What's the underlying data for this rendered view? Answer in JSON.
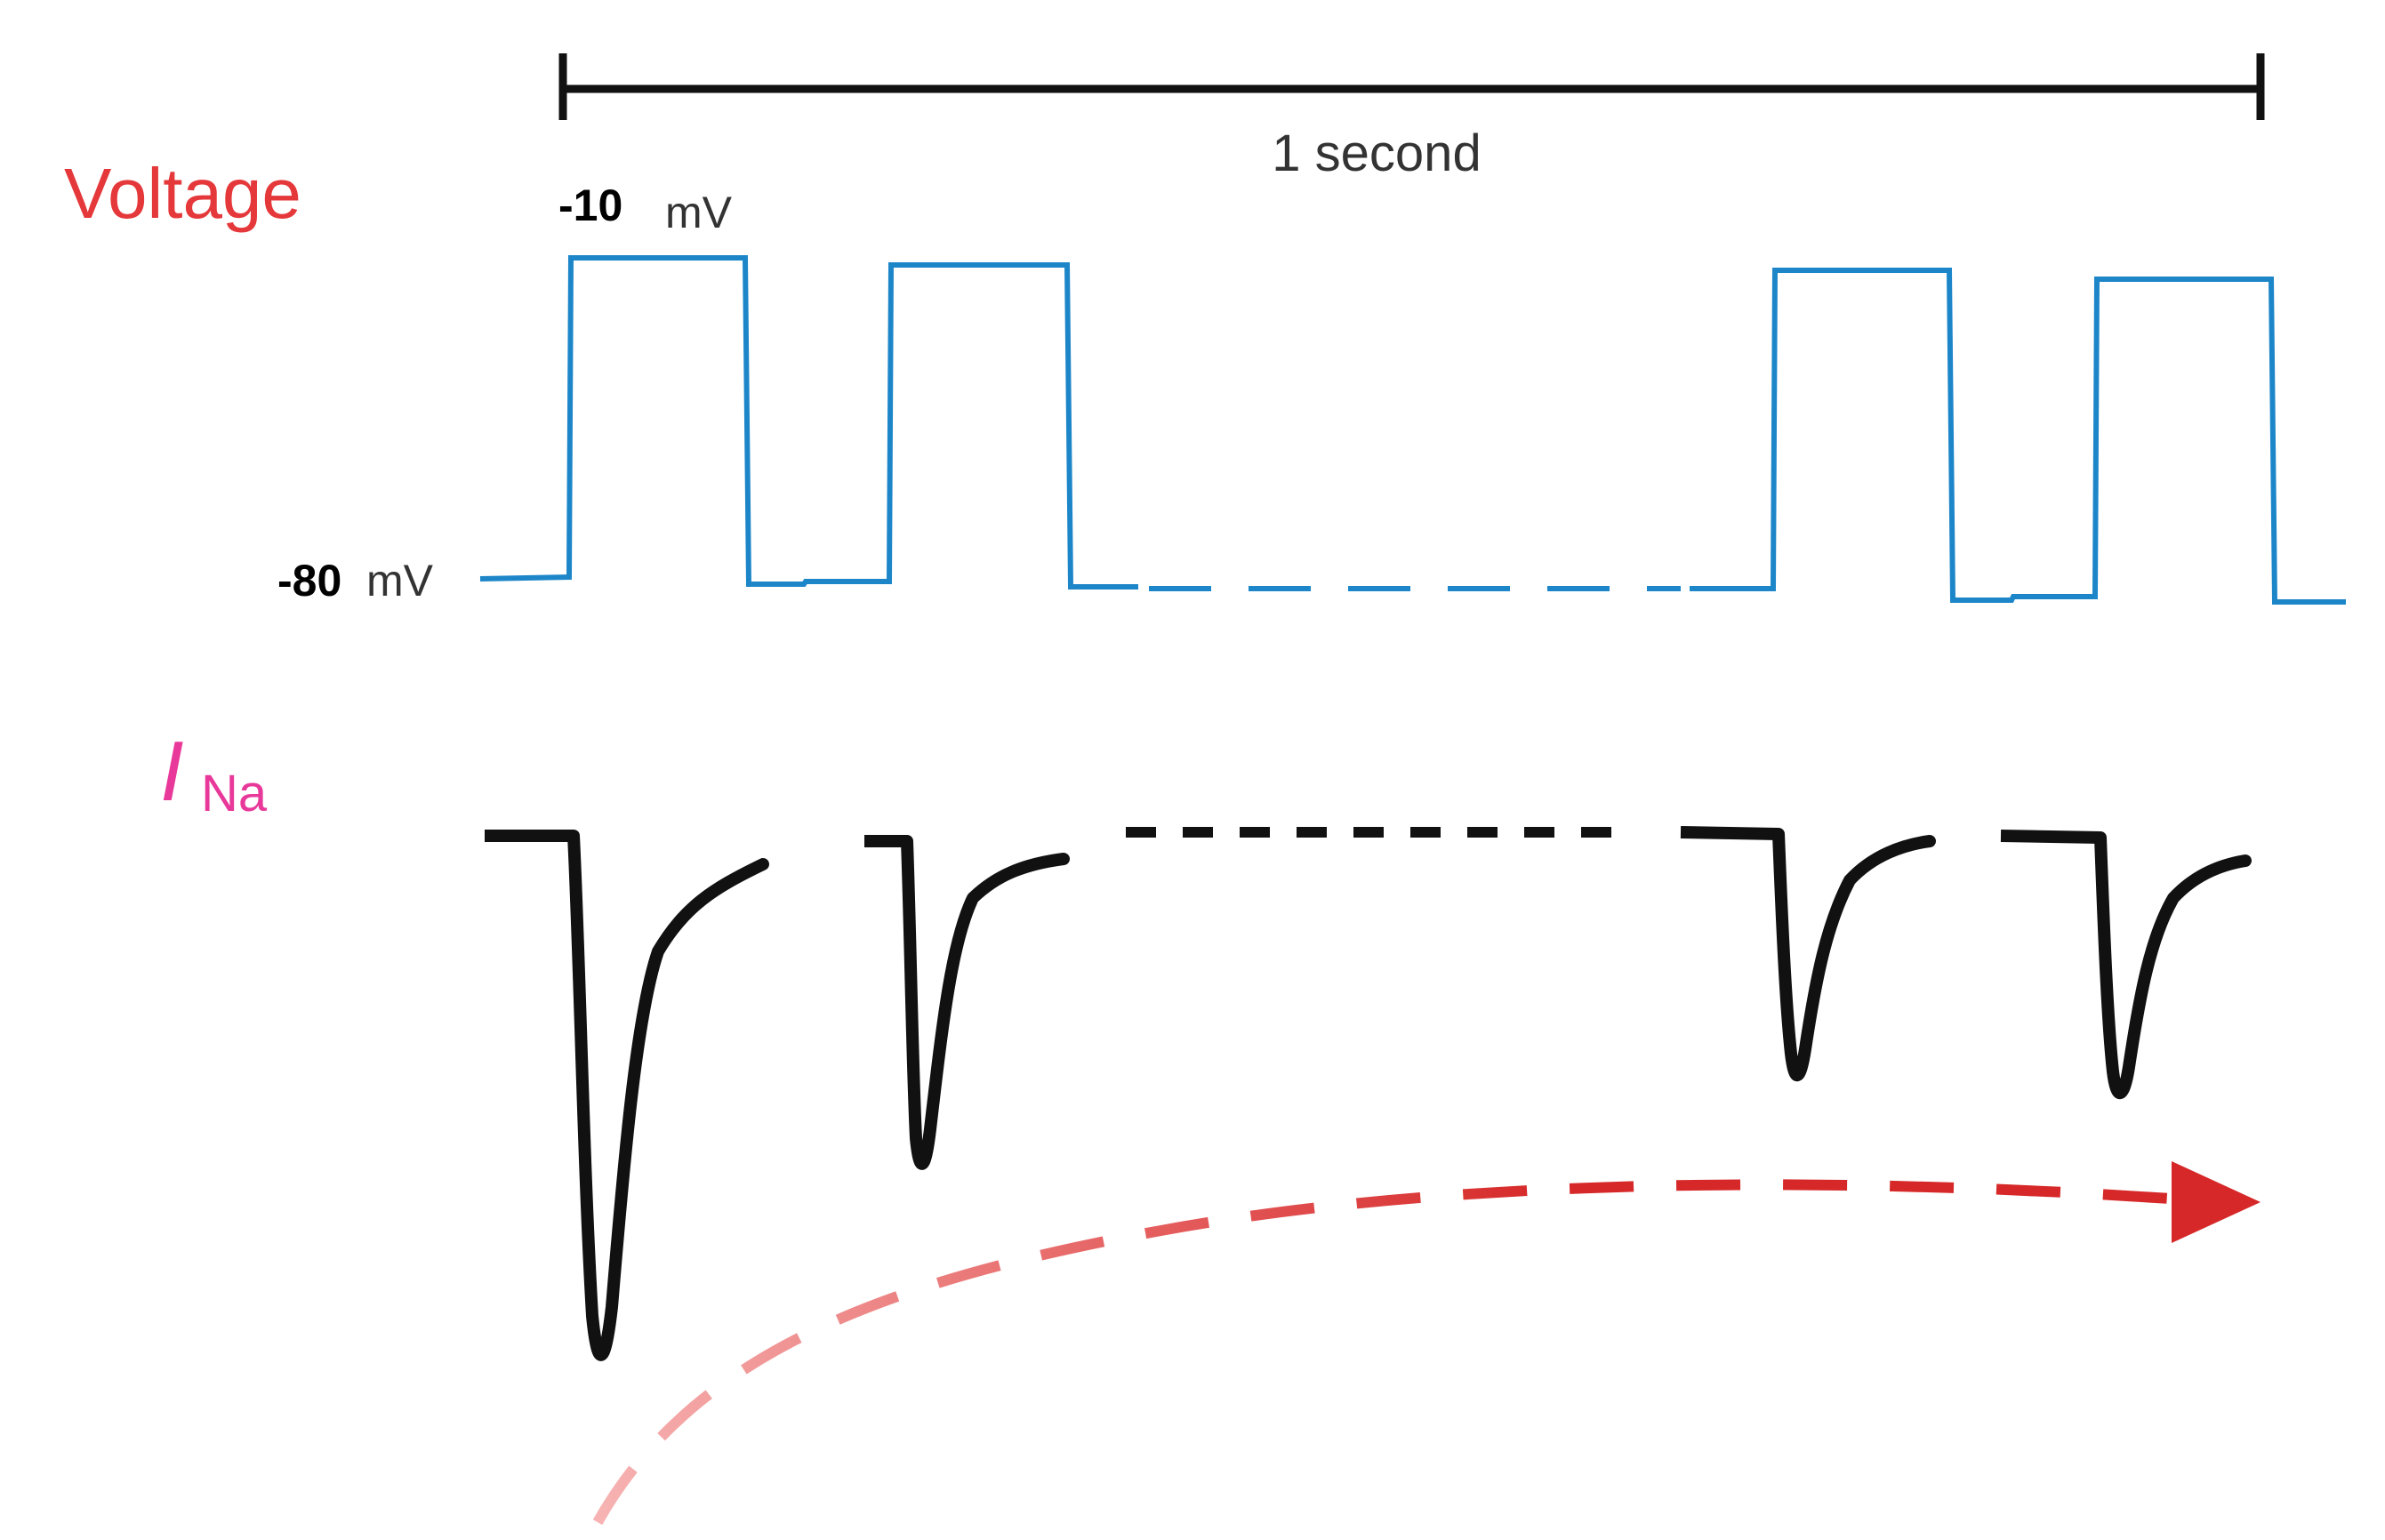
{
  "scale_bar": {
    "label": "1 second"
  },
  "voltage_panel": {
    "title": "Voltage",
    "step_level": {
      "value": "-10",
      "unit": "mV"
    },
    "holding_level": {
      "value": "-80",
      "unit": "mV"
    },
    "trace_color": "#1d86c9"
  },
  "current_panel": {
    "symbol": "I",
    "subscript": "Na",
    "trace_color": "#111111"
  },
  "trend_arrow": {
    "color_start": "#f7b3b3",
    "color_end": "#d62828"
  }
}
